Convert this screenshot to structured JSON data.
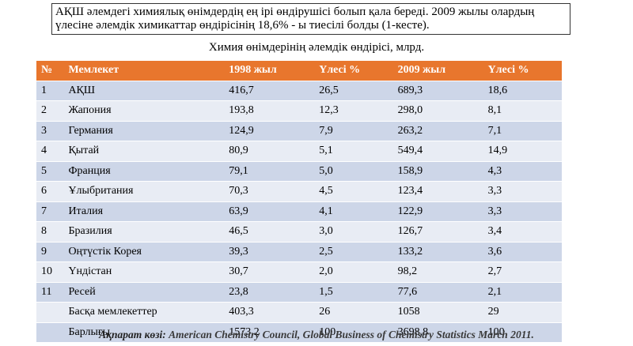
{
  "intro": "АҚШ әлемдегі химиялық өнімдердің ең ірі өндірушісі болып қала береді. 2009 жылы олардың үлесіне әлемдік химикаттар өндірісінің 18,6% - ы тиесілі болды (1-кесте).",
  "caption": "Химия өнімдерінің әлемдік өндірісі, млрд.",
  "table": {
    "header": [
      "№",
      "Мемлекет",
      "1998 жыл",
      "Үлесі %",
      "2009 жыл",
      "Үлесі %"
    ],
    "rows": [
      {
        "number": "1",
        "cells": [
          "АҚШ",
          "416,7",
          "26,5",
          "689,3",
          "18,6"
        ]
      },
      {
        "number": "2",
        "cells": [
          "Жапония",
          "193,8",
          "12,3",
          "298,0",
          "8,1"
        ]
      },
      {
        "number": "3",
        "cells": [
          "Германия",
          "124,9",
          "7,9",
          "263,2",
          "7,1"
        ]
      },
      {
        "number": "4",
        "cells": [
          "Қытай",
          "80,9",
          "5,1",
          "549,4",
          "14,9"
        ]
      },
      {
        "number": "5",
        "cells": [
          "Франция",
          "79,1",
          "5,0",
          "158,9",
          "4,3"
        ]
      },
      {
        "number": "6",
        "cells": [
          "Ұлыбритания",
          "70,3",
          "4,5",
          "123,4",
          "3,3"
        ]
      },
      {
        "number": "7",
        "cells": [
          "Италия",
          "63,9",
          "4,1",
          "122,9",
          "3,3"
        ]
      },
      {
        "number": "8",
        "cells": [
          "Бразилия",
          "46,5",
          "3,0",
          "126,7",
          "3,4"
        ]
      },
      {
        "number": "9",
        "cells": [
          "Оңтүстік Корея",
          "39,3",
          "2,5",
          "133,2",
          "3,6"
        ]
      },
      {
        "number": "10",
        "cells": [
          "Үндістан",
          "30,7",
          "2,0",
          "98,2",
          "2,7"
        ]
      },
      {
        "number": "11",
        "cells": [
          "Ресей",
          "23,8",
          "1,5",
          "77,6",
          "2,1"
        ]
      },
      {
        "cells": [
          "Басқа мемлекеттер",
          "403,3",
          "26",
          "1058",
          "29"
        ]
      },
      {
        "cells": [
          "Барлығы",
          "1573,2",
          "100",
          "3698,8",
          "100"
        ]
      }
    ]
  },
  "source": {
    "label": "Ақпарат көзі:",
    "text": "American Chemistry Council, Global Business of Chemistry Statistics March 2011."
  }
}
